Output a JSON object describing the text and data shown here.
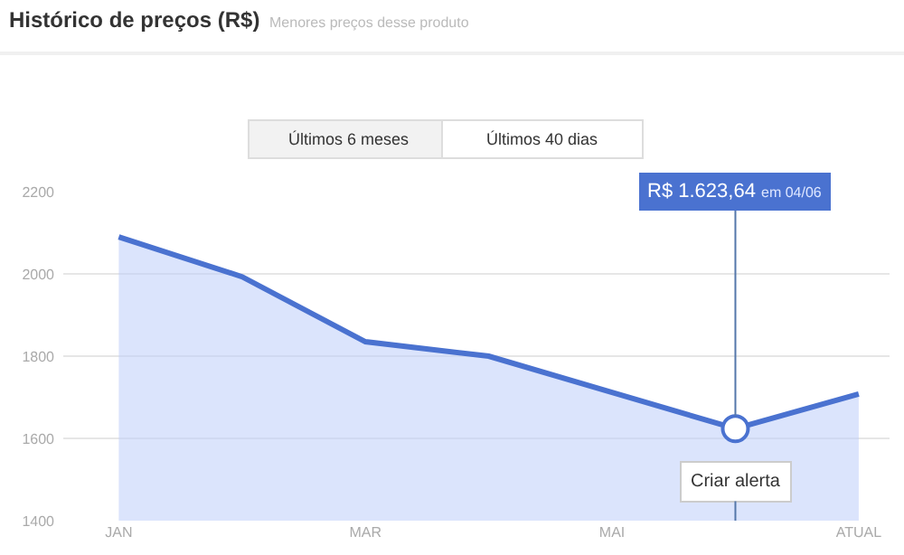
{
  "chart_data": {
    "type": "area",
    "title": "Histórico de preços (R$)",
    "subtitle": "Menores preços desse produto",
    "categories": [
      "JAN",
      null,
      "MAR",
      null,
      "MAI",
      null,
      "ATUAL"
    ],
    "series": [
      {
        "color": "#4a72d0",
        "values": [
          2090,
          1993,
          1835,
          1800,
          1712,
          1623.64,
          1708
        ]
      }
    ],
    "ylim": [
      1400,
      2200
    ],
    "yticks": [
      1400,
      1600,
      1800,
      2000,
      2200
    ],
    "grid": "y",
    "annotations": [
      "Últimos 6 meses",
      "Últimos 40 dias",
      {
        "text": "R$ 1.623,64 em 04/06",
        "y": 1623.64
      },
      "Criar alerta"
    ]
  }
}
